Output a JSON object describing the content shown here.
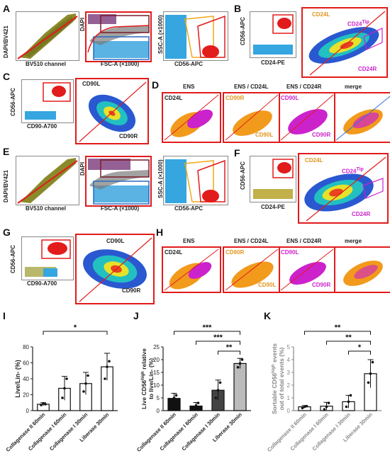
{
  "figure_labels": {
    "A": "A",
    "B": "B",
    "C": "C",
    "D": "D",
    "E": "E",
    "F": "F",
    "G": "G",
    "H": "H",
    "I": "I",
    "J": "J",
    "K": "K"
  },
  "axes": {
    "dapi_bv421": "DAPI/BV421",
    "dapi": "DAPI",
    "bv510": "BV510 channel",
    "fsc": "FSC-A (×1000)",
    "ssc": "SSC-A (×1000)",
    "cd56_apc": "CD56-APC",
    "cd24_pe": "CD24-PE",
    "cd90_a700": "CD90-A700"
  },
  "gates": {
    "cd24l": "CD24L",
    "cd24tip": "CD24",
    "tip_sup": "Tip",
    "cd24r": "CD24R",
    "cd90l": "CD90L",
    "cd90r": "CD90R",
    "ens": "ENS",
    "ens_cd24l": "ENS / CD24L",
    "ens_cd24r": "ENS / CD24R",
    "merge": "merge",
    "cd90r_short": "CD90R",
    "cd90l_short": "CD90L"
  },
  "colors": {
    "red": "#e21b1b",
    "orange": "#f29a1c",
    "magenta": "#cc22cc",
    "blue": "#35a6e0",
    "olive": "#8a8a2a"
  },
  "chart_data": [
    {
      "panel": "I",
      "type": "bar",
      "categories": [
        "Collagenase II 60min",
        "Collagenase I 60min",
        "Collagenase I 30min",
        "Liberase 30min"
      ],
      "values": [
        8,
        28,
        34,
        55
      ],
      "errors": [
        2,
        15,
        14,
        17
      ],
      "points": [
        [
          7,
          9,
          8
        ],
        [
          16,
          28,
          40
        ],
        [
          24,
          34,
          44
        ],
        [
          40,
          55,
          62
        ]
      ],
      "ylabel": "Live/Lin- (%)",
      "ylim": [
        0,
        80
      ],
      "yticks": [
        0,
        20,
        40,
        60,
        80
      ],
      "significance": [
        {
          "from": 0,
          "to": 3,
          "label": "*"
        }
      ],
      "fill": "#ffffff"
    },
    {
      "panel": "J",
      "type": "bar",
      "categories": [
        "Collagenase II 60min",
        "Collagenase I 60min",
        "Collagenase I 30min",
        "Liberase 30min"
      ],
      "values": [
        4.8,
        1.8,
        8,
        18.5
      ],
      "errors": [
        2,
        1.4,
        4,
        2
      ],
      "points": [
        [
          3,
          5,
          6
        ],
        [
          1,
          2,
          3
        ],
        [
          5,
          8,
          11
        ],
        [
          17,
          18.5,
          20
        ]
      ],
      "ylabel": "Live CD56high relative to live/Lin- (%)",
      "ylabel_parts": [
        "Live CD56",
        "high",
        " relative",
        "to live/Lin",
        " (%)"
      ],
      "ylim": [
        0,
        25
      ],
      "yticks": [
        0,
        5,
        10,
        15,
        20,
        25
      ],
      "significance": [
        {
          "from": 0,
          "to": 3,
          "label": "***"
        },
        {
          "from": 1,
          "to": 3,
          "label": "***"
        },
        {
          "from": 2,
          "to": 3,
          "label": "**"
        }
      ],
      "fills": [
        "#111111",
        "#111111",
        "#444444",
        "#bbbbbb"
      ]
    },
    {
      "panel": "K",
      "type": "bar",
      "categories": [
        "Collagenase II 60min",
        "Collagenase I 60min",
        "Collagenase I 30min",
        "Liberase 30min"
      ],
      "values": [
        0.3,
        0.35,
        0.7,
        2.9
      ],
      "errors": [
        0.1,
        0.3,
        0.5,
        1.1
      ],
      "points": [
        [
          0.2,
          0.3,
          0.35
        ],
        [
          0.1,
          0.3,
          0.6
        ],
        [
          0.3,
          0.7,
          1.2
        ],
        [
          2.2,
          2.9,
          3.8
        ]
      ],
      "ylabel": "Sortable CD56high events out of total events (%)",
      "ylabel_parts": [
        "Sortable CD56",
        "high",
        " events",
        "out of total events (%)"
      ],
      "ylim": [
        0,
        5
      ],
      "yticks": [
        0,
        1,
        2,
        3,
        4,
        5
      ],
      "significance": [
        {
          "from": 0,
          "to": 3,
          "label": "**"
        },
        {
          "from": 1,
          "to": 3,
          "label": "**"
        },
        {
          "from": 2,
          "to": 3,
          "label": "*"
        }
      ],
      "fill": "#ffffff"
    }
  ]
}
